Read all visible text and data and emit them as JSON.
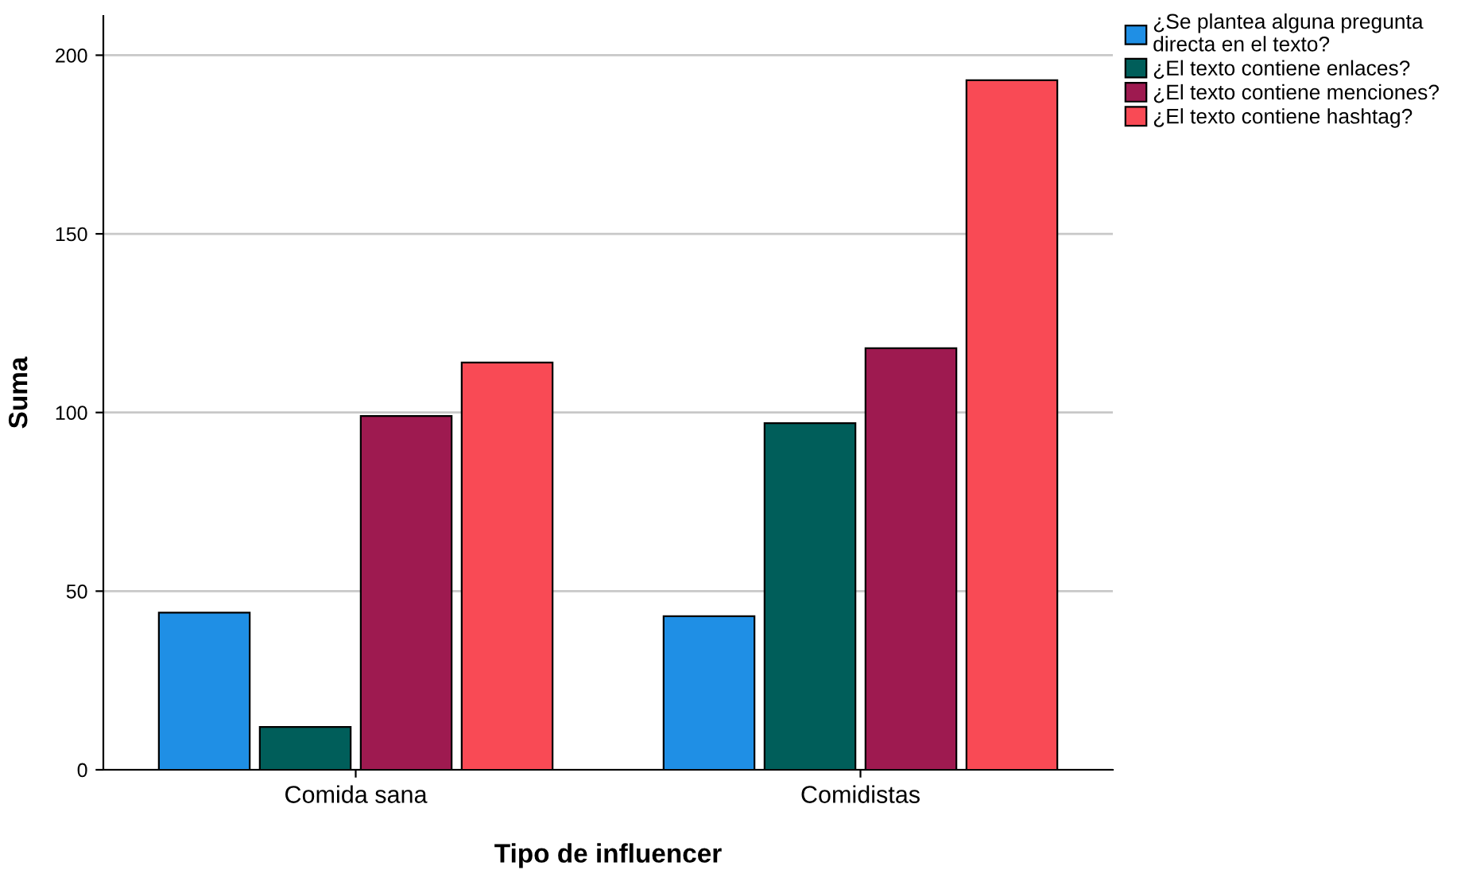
{
  "chart_data": {
    "type": "bar",
    "xlabel": "Tipo de influencer",
    "ylabel": "Suma",
    "categories": [
      "Comida sana",
      "Comidistas"
    ],
    "series": [
      {
        "name": "¿Se plantea alguna pregunta\ndirecta en el texto?",
        "color": "#1f8fe5",
        "values": [
          44,
          43
        ]
      },
      {
        "name": "¿El texto contiene enlaces?",
        "color": "#005e5a",
        "values": [
          12,
          97
        ]
      },
      {
        "name": "¿El texto contiene menciones?",
        "color": "#9e1a50",
        "values": [
          99,
          118
        ]
      },
      {
        "name": "¿El texto contiene hashtag?",
        "color": "#f94a55",
        "values": [
          114,
          193
        ]
      }
    ],
    "ylim": [
      0,
      211
    ],
    "yticks": [
      0,
      50,
      100,
      150,
      200
    ],
    "grid": "y",
    "legend": "top right"
  }
}
